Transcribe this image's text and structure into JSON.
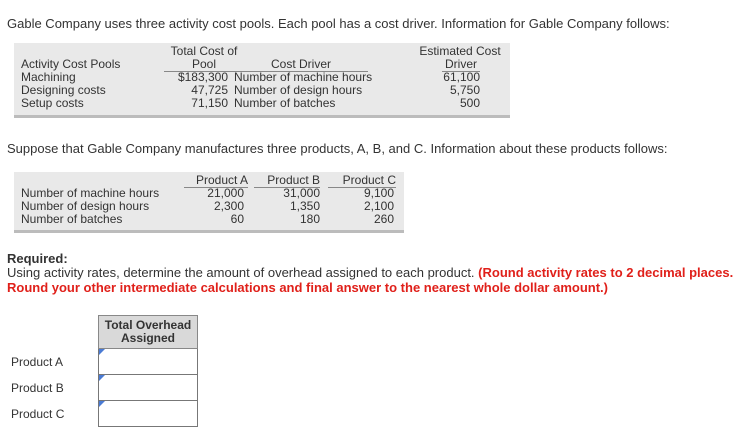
{
  "intro": "Gable Company uses three activity cost pools. Each pool has a cost driver. Information for Gable Company follows:",
  "table1": {
    "col_pool_line1": "Total Cost of",
    "col_pool_line2": "Pool",
    "col_driver": "Cost Driver",
    "col_est_line1": "Estimated Cost",
    "col_est_line2": "Driver",
    "col_activity": "Activity Cost Pools",
    "rows": [
      {
        "pool": "Machining",
        "cost": "$183,300",
        "driver": "Number of machine hours",
        "est": "61,100"
      },
      {
        "pool": "Designing costs",
        "cost": "47,725",
        "driver": "Number of design hours",
        "est": "5,750"
      },
      {
        "pool": "Setup costs",
        "cost": "71,150",
        "driver": "Number of batches",
        "est": "500"
      }
    ]
  },
  "para2": "Suppose that Gable Company manufactures three products, A, B, and C. Information about these products follows:",
  "table2": {
    "headers": [
      "Product A",
      "Product B",
      "Product C"
    ],
    "rows": [
      {
        "label": "Number of machine hours",
        "a": "21,000",
        "b": "31,000",
        "c": "9,100"
      },
      {
        "label": "Number of design hours",
        "a": "2,300",
        "b": "1,350",
        "c": "2,100"
      },
      {
        "label": "Number of batches",
        "a": "60",
        "b": "180",
        "c": "260"
      }
    ]
  },
  "required": {
    "title": "Required:",
    "text": "Using activity rates, determine the amount of overhead assigned to each product.",
    "note_line1": "(Round activity rates to 2 decimal places.",
    "note_line2": "Round your other intermediate calculations and final answer to the nearest whole dollar amount.)"
  },
  "answer": {
    "header_line1": "Total Overhead",
    "header_line2": "Assigned",
    "rows": [
      {
        "label": "Product A",
        "value": ""
      },
      {
        "label": "Product B",
        "value": ""
      },
      {
        "label": "Product C",
        "value": ""
      }
    ]
  },
  "colors": {
    "accent_red": "#e0201a",
    "table_bg": "#e9e9e9",
    "input_flag": "#4a7bd4"
  }
}
